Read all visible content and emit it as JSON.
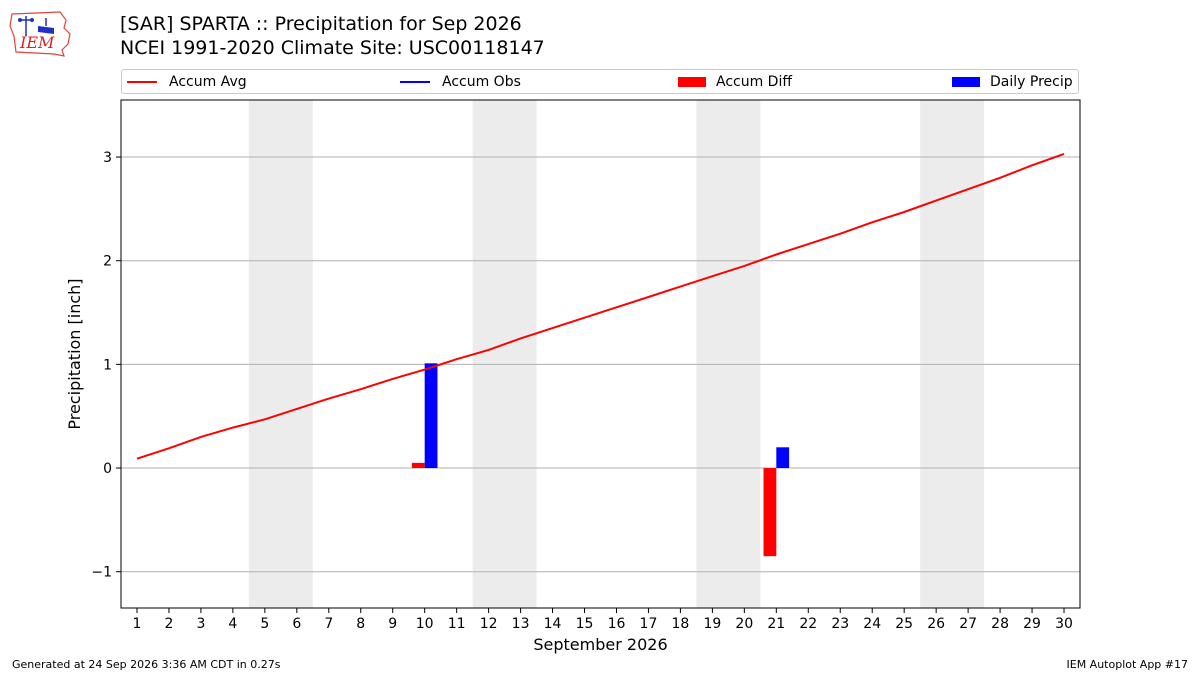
{
  "logo": {
    "text": "IEM"
  },
  "header": {
    "title_line1": "[SAR] SPARTA :: Precipitation for Sep 2026",
    "title_line2": "NCEI 1991-2020 Climate Site: USC00118147"
  },
  "legend": {
    "items": [
      {
        "label": "Accum Avg",
        "kind": "line",
        "color": "#ff0000"
      },
      {
        "label": "Accum Obs",
        "kind": "line",
        "color": "#0000ff"
      },
      {
        "label": "Accum Diff",
        "kind": "box",
        "color": "#ff0000"
      },
      {
        "label": "Daily Precip",
        "kind": "box",
        "color": "#0000ff"
      }
    ]
  },
  "footer": {
    "left": "Generated at 24 Sep 2026 3:36 AM CDT in 0.27s",
    "right": "IEM Autoplot App #17"
  },
  "chart_data": {
    "type": "bar",
    "xlabel": "September 2026",
    "ylabel": "Precipitation [inch]",
    "xlim": [
      0.5,
      30.5
    ],
    "ylim": [
      -1.35,
      3.55
    ],
    "x_ticks": [
      1,
      2,
      3,
      4,
      5,
      6,
      7,
      8,
      9,
      10,
      11,
      12,
      13,
      14,
      15,
      16,
      17,
      18,
      19,
      20,
      21,
      22,
      23,
      24,
      25,
      26,
      27,
      28,
      29,
      30
    ],
    "y_ticks": [
      -1,
      0,
      1,
      2,
      3
    ],
    "y_tick_labels": [
      "−1",
      "0",
      "1",
      "2",
      "3"
    ],
    "grid": "horizontal",
    "legend_position": "top",
    "weekend_shading": [
      [
        4.5,
        6.5
      ],
      [
        11.5,
        13.5
      ],
      [
        18.5,
        20.5
      ],
      [
        25.5,
        27.5
      ]
    ],
    "weekend_color": "#ececec",
    "accum_avg": {
      "name": "Accum Avg",
      "color": "#ff0000",
      "x": [
        1,
        2,
        3,
        4,
        5,
        6,
        7,
        8,
        9,
        10,
        11,
        12,
        13,
        14,
        15,
        16,
        17,
        18,
        19,
        20,
        21,
        22,
        23,
        24,
        25,
        26,
        27,
        28,
        29,
        30
      ],
      "values": [
        0.09,
        0.19,
        0.3,
        0.39,
        0.47,
        0.57,
        0.67,
        0.76,
        0.86,
        0.95,
        1.05,
        1.14,
        1.25,
        1.35,
        1.45,
        1.55,
        1.65,
        1.75,
        1.85,
        1.95,
        2.06,
        2.16,
        2.26,
        2.37,
        2.47,
        2.58,
        2.69,
        2.8,
        2.92,
        3.03
      ]
    },
    "accum_diff": {
      "name": "Accum Diff",
      "color": "#ff0000",
      "x": [
        10,
        21
      ],
      "values": [
        0.05,
        -0.85
      ]
    },
    "daily_precip": {
      "name": "Daily Precip",
      "color": "#0000ff",
      "x": [
        10,
        21
      ],
      "values": [
        1.01,
        0.2
      ]
    }
  }
}
